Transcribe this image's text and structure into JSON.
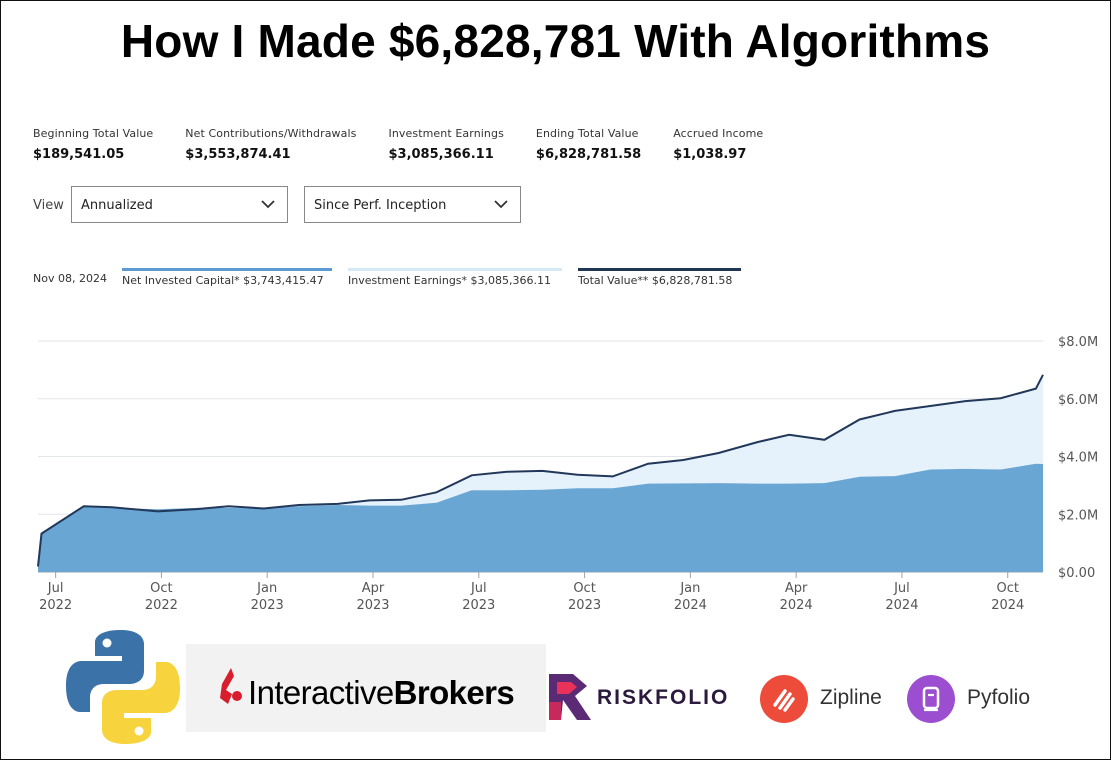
{
  "title": "How I Made $6,828,781 With Algorithms",
  "summary": [
    {
      "label": "Beginning Total Value",
      "value": "$189,541.05"
    },
    {
      "label": "Net Contributions/Withdrawals",
      "value": "$3,553,874.41"
    },
    {
      "label": "Investment Earnings",
      "value": "$3,085,366.11"
    },
    {
      "label": "Ending Total Value",
      "value": "$6,828,781.58"
    },
    {
      "label": "Accrued Income",
      "value": "$1,038.97"
    }
  ],
  "view": {
    "label": "View",
    "period_type": "Annualized",
    "range": "Since Perf. Inception"
  },
  "legend": {
    "date": "Nov 08, 2024",
    "items": [
      {
        "label": "Net Invested Capital* $3,743,415.47",
        "color": "#5b9bcf"
      },
      {
        "label": "Investment Earnings* $3,085,366.11",
        "color": "#d6e9f7"
      },
      {
        "label": "Total Value** $6,828,781.58",
        "color": "#1f3655"
      }
    ]
  },
  "colors": {
    "capital_fill": "#6aa6d4",
    "earnings_fill": "#e6f2fb",
    "total_line": "#22385a"
  },
  "chart_data": {
    "type": "area",
    "xlabel": "",
    "ylabel": "",
    "ylim": [
      0,
      8
    ],
    "y_unit": "$M",
    "y_ticks": [
      "$0.00",
      "$2.0M",
      "$4.0M",
      "$6.0M",
      "$8.0M"
    ],
    "grid": true,
    "x_ticks": [
      {
        "t": 0.5,
        "label": [
          "Jul",
          "2022"
        ]
      },
      {
        "t": 3.5,
        "label": [
          "Oct",
          "2022"
        ]
      },
      {
        "t": 6.5,
        "label": [
          "Jan",
          "2023"
        ]
      },
      {
        "t": 9.5,
        "label": [
          "Apr",
          "2023"
        ]
      },
      {
        "t": 12.5,
        "label": [
          "Jul",
          "2023"
        ]
      },
      {
        "t": 15.5,
        "label": [
          "Oct",
          "2023"
        ]
      },
      {
        "t": 18.5,
        "label": [
          "Jan",
          "2024"
        ]
      },
      {
        "t": 21.5,
        "label": [
          "Apr",
          "2024"
        ]
      },
      {
        "t": 24.5,
        "label": [
          "Jul",
          "2024"
        ]
      },
      {
        "t": 27.5,
        "label": [
          "Oct",
          "2024"
        ]
      }
    ],
    "x": [
      0,
      0.1,
      1.3,
      2.1,
      3.4,
      4.5,
      5.4,
      6.4,
      7.4,
      8.5,
      9.4,
      10.3,
      11.3,
      12.3,
      13.3,
      14.3,
      15.3,
      16.3,
      17.3,
      18.3,
      19.3,
      20.4,
      21.3,
      22.3,
      23.3,
      24.3,
      25.3,
      26.3,
      27.3,
      28.3,
      28.5
    ],
    "series": [
      {
        "name": "Net Invested Capital",
        "values": [
          0.19,
          1.33,
          2.25,
          2.22,
          2.17,
          2.22,
          2.22,
          2.2,
          2.28,
          2.32,
          2.3,
          2.3,
          2.4,
          2.83,
          2.83,
          2.85,
          2.9,
          2.9,
          3.06,
          3.07,
          3.08,
          3.06,
          3.06,
          3.08,
          3.3,
          3.32,
          3.55,
          3.57,
          3.55,
          3.75,
          3.74
        ]
      },
      {
        "name": "Total Value",
        "values": [
          0.19,
          1.33,
          2.28,
          2.24,
          2.1,
          2.18,
          2.28,
          2.2,
          2.32,
          2.36,
          2.48,
          2.5,
          2.76,
          3.35,
          3.47,
          3.5,
          3.37,
          3.31,
          3.75,
          3.88,
          4.12,
          4.5,
          4.75,
          4.58,
          5.28,
          5.58,
          5.75,
          5.92,
          6.02,
          6.35,
          6.83
        ]
      }
    ]
  },
  "logos": {
    "interactive_brokers": {
      "light": "Interactive",
      "bold": "Brokers"
    },
    "riskfolio": "RISKFOLIO",
    "zipline": "Zipline",
    "pyfolio": "Pyfolio"
  }
}
